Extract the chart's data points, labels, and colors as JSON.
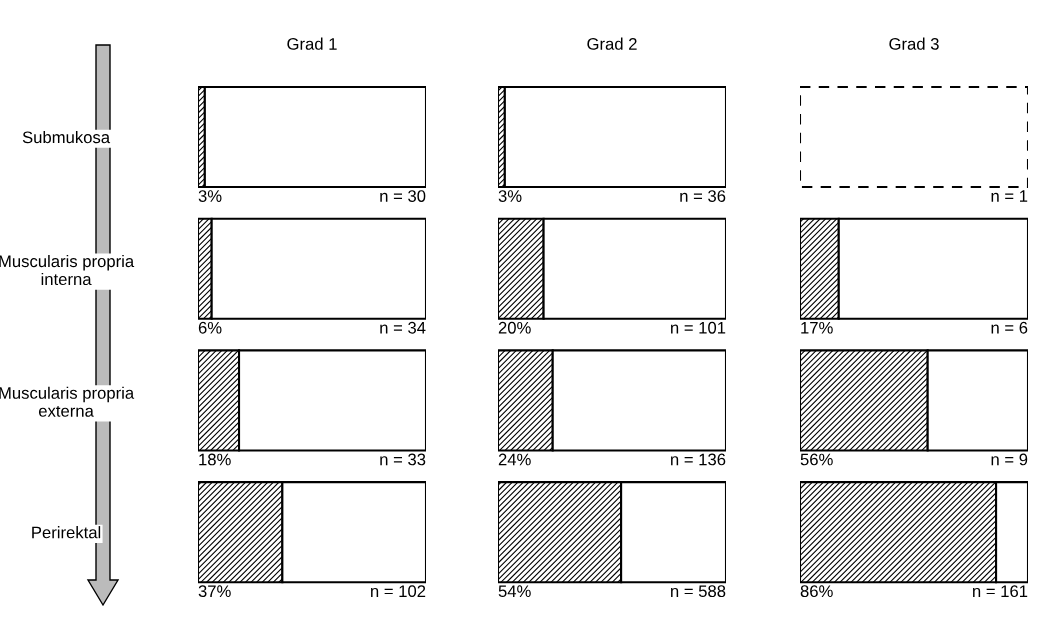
{
  "chart_data": [
    {
      "type": "bar",
      "title": "Grad 1",
      "orientation": "horizontal",
      "stacked": true,
      "categories": [
        "Submukosa",
        "Muscularis propria\ninterna",
        "Muscularis propria\nexterna",
        "Perirektal"
      ],
      "tick_labels": "y",
      "xlim": [
        0,
        100
      ],
      "series": [
        {
          "color": "#000000",
          "values": [
            3,
            6,
            18,
            37
          ],
          "value_labels": [
            "3%",
            "6%",
            "18%",
            "37%"
          ]
        },
        {
          "color": "#ffffff",
          "values": [
            97,
            94,
            82,
            63
          ]
        }
      ],
      "annotations": [
        "n = 30",
        "n = 34",
        "n = 33",
        "n = 102"
      ]
    },
    {
      "type": "bar",
      "title": "Grad 2",
      "orientation": "horizontal",
      "stacked": true,
      "categories": [
        null,
        null,
        null,
        null
      ],
      "tick_labels": false,
      "xlim": [
        0,
        100
      ],
      "series": [
        {
          "color": "#000000",
          "values": [
            3,
            20,
            24,
            54
          ],
          "value_labels": [
            "3%",
            "20%",
            "24%",
            "54%"
          ]
        },
        {
          "color": "#ffffff",
          "values": [
            97,
            80,
            76,
            46
          ]
        }
      ],
      "annotations": [
        "n = 36",
        "n = 101",
        "n = 136",
        "n = 588"
      ]
    },
    {
      "type": "bar",
      "title": "Grad 3",
      "orientation": "horizontal",
      "stacked": true,
      "categories": [
        null,
        null,
        null,
        null
      ],
      "tick_labels": false,
      "xlim": [
        0,
        100
      ],
      "series": [
        {
          "color": "#000000",
          "values": [
            null,
            17,
            56,
            86
          ],
          "value_labels": [
            null,
            "17%",
            "56%",
            "86%"
          ]
        },
        {
          "color": "#ffffff",
          "values": [
            100,
            83,
            44,
            14
          ]
        }
      ],
      "annotations": [
        "n = 1",
        "n = 6",
        "n = 9",
        "n = 161"
      ]
    }
  ]
}
